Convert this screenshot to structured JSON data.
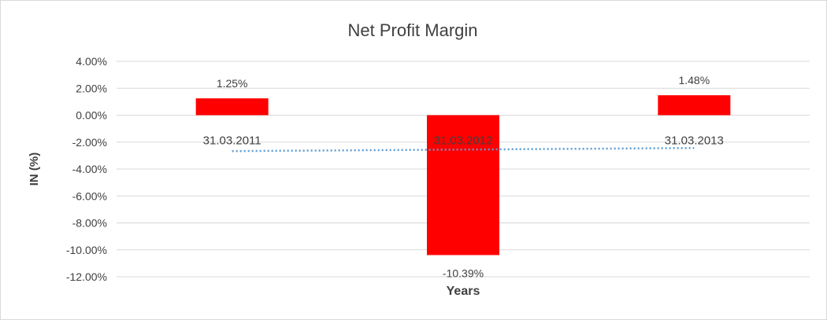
{
  "chart_data": {
    "type": "bar",
    "title": "Net Profit Margin",
    "xlabel": "Years",
    "ylabel": "IN (%)",
    "categories": [
      "31.03.2011",
      "31.03.2012",
      "31.03.2013"
    ],
    "values": [
      1.25,
      -10.39,
      1.48
    ],
    "data_labels": [
      "1.25%",
      "-10.39%",
      "1.48%"
    ],
    "ylim": [
      -12,
      4
    ],
    "yticks": [
      "4.00%",
      "2.00%",
      "0.00%",
      "-2.00%",
      "-4.00%",
      "-6.00%",
      "-8.00%",
      "-10.00%",
      "-12.00%"
    ],
    "ytick_values": [
      4,
      2,
      0,
      -2,
      -4,
      -6,
      -8,
      -10,
      -12
    ],
    "grid": true,
    "legend": "none",
    "trendline": "linear",
    "colors": {
      "bar": "#ff0000",
      "trendline": "#5b9bd5",
      "grid": "#d9d9d9"
    }
  }
}
